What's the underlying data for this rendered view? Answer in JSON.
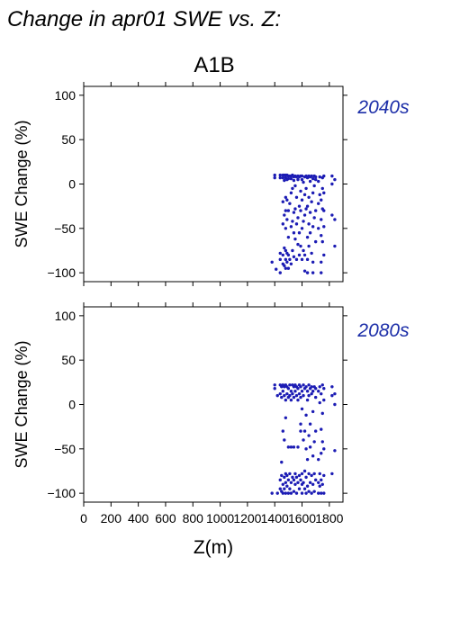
{
  "title": "Change in apr01 SWE vs. Z:",
  "subtitle": "A1B",
  "colors": {
    "points": "#1c1cb4",
    "period_label": "#1c2ea8",
    "axis": "#000000"
  },
  "chart_data": [
    {
      "type": "scatter",
      "period": "2040s",
      "ylabel": "SWE Change (%)",
      "xlim": [
        0,
        1900
      ],
      "ylim": [
        -110,
        110
      ],
      "x_ticks": [
        0,
        200,
        400,
        600,
        800,
        1000,
        1200,
        1400,
        1600,
        1800
      ],
      "y_ticks": [
        100,
        50,
        0,
        -50,
        -100
      ],
      "y_tick_labels": [
        "100",
        "50",
        "0",
        "−50",
        "−100"
      ],
      "points": [
        [
          1380,
          -88
        ],
        [
          1410,
          -96
        ],
        [
          1400,
          10
        ],
        [
          1400,
          7
        ],
        [
          1440,
          -100
        ],
        [
          1440,
          -78
        ],
        [
          1440,
          -85
        ],
        [
          1440,
          7
        ],
        [
          1440,
          10
        ],
        [
          1460,
          -90
        ],
        [
          1460,
          -80
        ],
        [
          1460,
          -45
        ],
        [
          1460,
          -20
        ],
        [
          1460,
          10
        ],
        [
          1460,
          7
        ],
        [
          1470,
          -92
        ],
        [
          1470,
          -72
        ],
        [
          1470,
          -35
        ],
        [
          1470,
          4
        ],
        [
          1470,
          10
        ],
        [
          1480,
          -95
        ],
        [
          1480,
          -85
        ],
        [
          1480,
          -75
        ],
        [
          1480,
          -50
        ],
        [
          1480,
          -30
        ],
        [
          1480,
          -15
        ],
        [
          1480,
          10
        ],
        [
          1480,
          7
        ],
        [
          1490,
          -88
        ],
        [
          1490,
          -78
        ],
        [
          1490,
          -40
        ],
        [
          1490,
          -18
        ],
        [
          1490,
          5
        ],
        [
          1490,
          10
        ],
        [
          1500,
          -95
        ],
        [
          1500,
          -80
        ],
        [
          1500,
          -60
        ],
        [
          1500,
          -30
        ],
        [
          1500,
          9
        ],
        [
          1500,
          6
        ],
        [
          1510,
          -85
        ],
        [
          1510,
          -22
        ],
        [
          1510,
          9
        ],
        [
          1520,
          -90
        ],
        [
          1520,
          -48
        ],
        [
          1520,
          -10
        ],
        [
          1520,
          9
        ],
        [
          1520,
          6
        ],
        [
          1530,
          -75
        ],
        [
          1530,
          -42
        ],
        [
          1530,
          -5
        ],
        [
          1530,
          10
        ],
        [
          1540,
          -82
        ],
        [
          1540,
          -55
        ],
        [
          1540,
          -32
        ],
        [
          1540,
          8
        ],
        [
          1540,
          4
        ],
        [
          1550,
          -62
        ],
        [
          1550,
          -28
        ],
        [
          1550,
          -2
        ],
        [
          1550,
          9
        ],
        [
          1560,
          -85
        ],
        [
          1560,
          -45
        ],
        [
          1560,
          -15
        ],
        [
          1560,
          8
        ],
        [
          1570,
          -68
        ],
        [
          1570,
          -38
        ],
        [
          1570,
          5
        ],
        [
          1570,
          9
        ],
        [
          1580,
          -80
        ],
        [
          1580,
          -55
        ],
        [
          1580,
          -25
        ],
        [
          1580,
          8
        ],
        [
          1590,
          -70
        ],
        [
          1590,
          -30
        ],
        [
          1590,
          -8
        ],
        [
          1590,
          9
        ],
        [
          1600,
          -85
        ],
        [
          1600,
          -50
        ],
        [
          1600,
          -18
        ],
        [
          1600,
          5
        ],
        [
          1600,
          9
        ],
        [
          1610,
          -75
        ],
        [
          1610,
          -42
        ],
        [
          1610,
          2
        ],
        [
          1620,
          -98
        ],
        [
          1620,
          -80
        ],
        [
          1620,
          -35
        ],
        [
          1620,
          -12
        ],
        [
          1620,
          8
        ],
        [
          1630,
          -28
        ],
        [
          1630,
          -5
        ],
        [
          1630,
          9
        ],
        [
          1640,
          -100
        ],
        [
          1640,
          -85
        ],
        [
          1640,
          -60
        ],
        [
          1640,
          -25
        ],
        [
          1640,
          7
        ],
        [
          1650,
          -70
        ],
        [
          1650,
          -45
        ],
        [
          1650,
          -15
        ],
        [
          1650,
          9
        ],
        [
          1660,
          -55
        ],
        [
          1660,
          -32
        ],
        [
          1660,
          3
        ],
        [
          1660,
          8
        ],
        [
          1670,
          -78
        ],
        [
          1670,
          -20
        ],
        [
          1670,
          9
        ],
        [
          1680,
          -100
        ],
        [
          1680,
          -88
        ],
        [
          1680,
          -48
        ],
        [
          1680,
          -10
        ],
        [
          1680,
          6
        ],
        [
          1690,
          -38
        ],
        [
          1690,
          -2
        ],
        [
          1690,
          9
        ],
        [
          1700,
          -65
        ],
        [
          1700,
          -30
        ],
        [
          1700,
          5
        ],
        [
          1700,
          8
        ],
        [
          1720,
          -50
        ],
        [
          1720,
          -22
        ],
        [
          1720,
          3
        ],
        [
          1730,
          -12
        ],
        [
          1730,
          8
        ],
        [
          1740,
          -100
        ],
        [
          1740,
          -88
        ],
        [
          1740,
          -58
        ],
        [
          1740,
          -40
        ],
        [
          1740,
          -18
        ],
        [
          1750,
          -65
        ],
        [
          1750,
          -28
        ],
        [
          1750,
          -5
        ],
        [
          1750,
          7
        ],
        [
          1760,
          -80
        ],
        [
          1760,
          -48
        ],
        [
          1760,
          -30
        ],
        [
          1760,
          -10
        ],
        [
          1760,
          9
        ],
        [
          1820,
          -35
        ],
        [
          1820,
          0
        ],
        [
          1820,
          9
        ],
        [
          1840,
          -70
        ],
        [
          1840,
          -40
        ],
        [
          1840,
          5
        ]
      ]
    },
    {
      "type": "scatter",
      "period": "2080s",
      "ylabel": "SWE Change (%)",
      "xlim": [
        0,
        1900
      ],
      "ylim": [
        -110,
        110
      ],
      "x_ticks": [
        0,
        200,
        400,
        600,
        800,
        1000,
        1200,
        1400,
        1600,
        1800
      ],
      "y_ticks": [
        100,
        50,
        0,
        -50,
        -100
      ],
      "y_tick_labels": [
        "100",
        "50",
        "0",
        "−50",
        "−100"
      ],
      "points": [
        [
          1380,
          -100
        ],
        [
          1400,
          22
        ],
        [
          1400,
          18
        ],
        [
          1420,
          -100
        ],
        [
          1420,
          10
        ],
        [
          1440,
          -95
        ],
        [
          1440,
          -85
        ],
        [
          1440,
          22
        ],
        [
          1440,
          12
        ],
        [
          1450,
          -98
        ],
        [
          1450,
          -80
        ],
        [
          1450,
          -65
        ],
        [
          1450,
          20
        ],
        [
          1450,
          8
        ],
        [
          1460,
          -100
        ],
        [
          1460,
          -90
        ],
        [
          1460,
          -30
        ],
        [
          1460,
          15
        ],
        [
          1460,
          22
        ],
        [
          1470,
          -95
        ],
        [
          1470,
          -82
        ],
        [
          1470,
          -40
        ],
        [
          1470,
          10
        ],
        [
          1470,
          20
        ],
        [
          1480,
          -100
        ],
        [
          1480,
          -88
        ],
        [
          1480,
          -78
        ],
        [
          1480,
          -15
        ],
        [
          1480,
          5
        ],
        [
          1480,
          22
        ],
        [
          1490,
          -92
        ],
        [
          1490,
          -80
        ],
        [
          1490,
          12
        ],
        [
          1490,
          20
        ],
        [
          1500,
          -100
        ],
        [
          1500,
          -85
        ],
        [
          1500,
          -48
        ],
        [
          1500,
          18
        ],
        [
          1500,
          8
        ],
        [
          1510,
          -95
        ],
        [
          1510,
          -78
        ],
        [
          1510,
          22
        ],
        [
          1510,
          10
        ],
        [
          1520,
          -100
        ],
        [
          1520,
          -88
        ],
        [
          1520,
          -48
        ],
        [
          1520,
          15
        ],
        [
          1520,
          5
        ],
        [
          1530,
          -82
        ],
        [
          1530,
          22
        ],
        [
          1530,
          12
        ],
        [
          1540,
          -98
        ],
        [
          1540,
          -85
        ],
        [
          1540,
          -48
        ],
        [
          1540,
          20
        ],
        [
          1540,
          8
        ],
        [
          1550,
          -90
        ],
        [
          1550,
          -78
        ],
        [
          1550,
          15
        ],
        [
          1550,
          22
        ],
        [
          1560,
          -100
        ],
        [
          1560,
          -82
        ],
        [
          1560,
          10
        ],
        [
          1560,
          20
        ],
        [
          1570,
          -88
        ],
        [
          1570,
          -48
        ],
        [
          1570,
          5
        ],
        [
          1570,
          18
        ],
        [
          1580,
          -95
        ],
        [
          1580,
          -80
        ],
        [
          1580,
          12
        ],
        [
          1580,
          22
        ],
        [
          1590,
          -85
        ],
        [
          1590,
          -30
        ],
        [
          1590,
          -22
        ],
        [
          1590,
          20
        ],
        [
          1590,
          8
        ],
        [
          1600,
          -100
        ],
        [
          1600,
          -90
        ],
        [
          1600,
          -78
        ],
        [
          1600,
          -5
        ],
        [
          1600,
          15
        ],
        [
          1610,
          -88
        ],
        [
          1610,
          -40
        ],
        [
          1610,
          22
        ],
        [
          1610,
          10
        ],
        [
          1620,
          -95
        ],
        [
          1620,
          -75
        ],
        [
          1620,
          -30
        ],
        [
          1620,
          18
        ],
        [
          1630,
          -100
        ],
        [
          1630,
          -82
        ],
        [
          1630,
          -50
        ],
        [
          1630,
          -12
        ],
        [
          1630,
          20
        ],
        [
          1640,
          -92
        ],
        [
          1640,
          -62
        ],
        [
          1640,
          5
        ],
        [
          1640,
          15
        ],
        [
          1650,
          -98
        ],
        [
          1650,
          -78
        ],
        [
          1650,
          -35
        ],
        [
          1650,
          22
        ],
        [
          1650,
          10
        ],
        [
          1660,
          -88
        ],
        [
          1660,
          -48
        ],
        [
          1660,
          -22
        ],
        [
          1660,
          18
        ],
        [
          1670,
          -100
        ],
        [
          1670,
          -80
        ],
        [
          1670,
          12
        ],
        [
          1670,
          20
        ],
        [
          1680,
          -90
        ],
        [
          1680,
          -58
        ],
        [
          1680,
          -8
        ],
        [
          1680,
          15
        ],
        [
          1690,
          -98
        ],
        [
          1690,
          -78
        ],
        [
          1690,
          -42
        ],
        [
          1690,
          20
        ],
        [
          1700,
          -85
        ],
        [
          1700,
          -30
        ],
        [
          1700,
          8
        ],
        [
          1700,
          18
        ],
        [
          1720,
          -100
        ],
        [
          1720,
          -88
        ],
        [
          1720,
          -62
        ],
        [
          1720,
          15
        ],
        [
          1730,
          -92
        ],
        [
          1730,
          -78
        ],
        [
          1730,
          2
        ],
        [
          1730,
          20
        ],
        [
          1740,
          -100
        ],
        [
          1740,
          -85
        ],
        [
          1740,
          -55
        ],
        [
          1740,
          -28
        ],
        [
          1740,
          12
        ],
        [
          1750,
          -90
        ],
        [
          1750,
          -42
        ],
        [
          1750,
          -10
        ],
        [
          1750,
          22
        ],
        [
          1760,
          -100
        ],
        [
          1760,
          -80
        ],
        [
          1760,
          -50
        ],
        [
          1760,
          5
        ],
        [
          1760,
          18
        ],
        [
          1820,
          -78
        ],
        [
          1820,
          10
        ],
        [
          1820,
          20
        ],
        [
          1840,
          -52
        ],
        [
          1840,
          0
        ],
        [
          1840,
          12
        ]
      ]
    }
  ],
  "xlabel": "Z(m)"
}
